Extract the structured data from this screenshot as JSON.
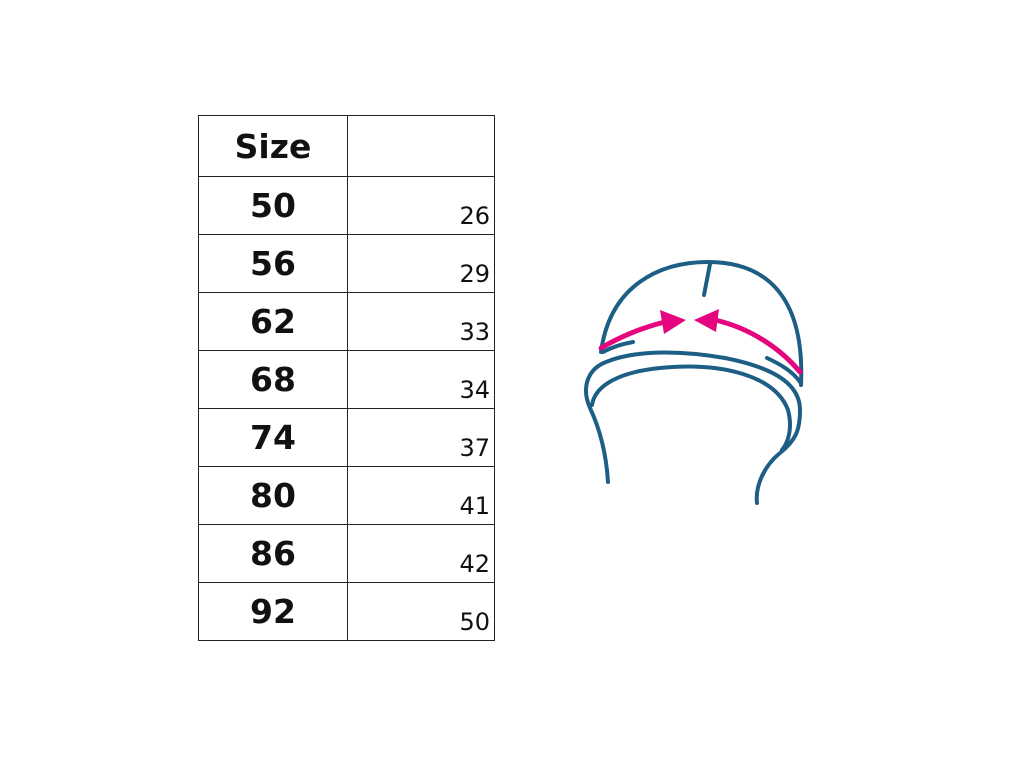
{
  "table": {
    "header": {
      "size": "Size",
      "value": ""
    },
    "rows": [
      {
        "size": "50",
        "value": "26"
      },
      {
        "size": "56",
        "value": "29"
      },
      {
        "size": "62",
        "value": "33"
      },
      {
        "size": "68",
        "value": "34"
      },
      {
        "size": "74",
        "value": "37"
      },
      {
        "size": "80",
        "value": "41"
      },
      {
        "size": "86",
        "value": "42"
      },
      {
        "size": "92",
        "value": "50"
      }
    ]
  },
  "diagram": {
    "icon": "hat-measurement-icon",
    "colors": {
      "outline": "#1d5e85",
      "arrow": "#e5067f"
    }
  }
}
